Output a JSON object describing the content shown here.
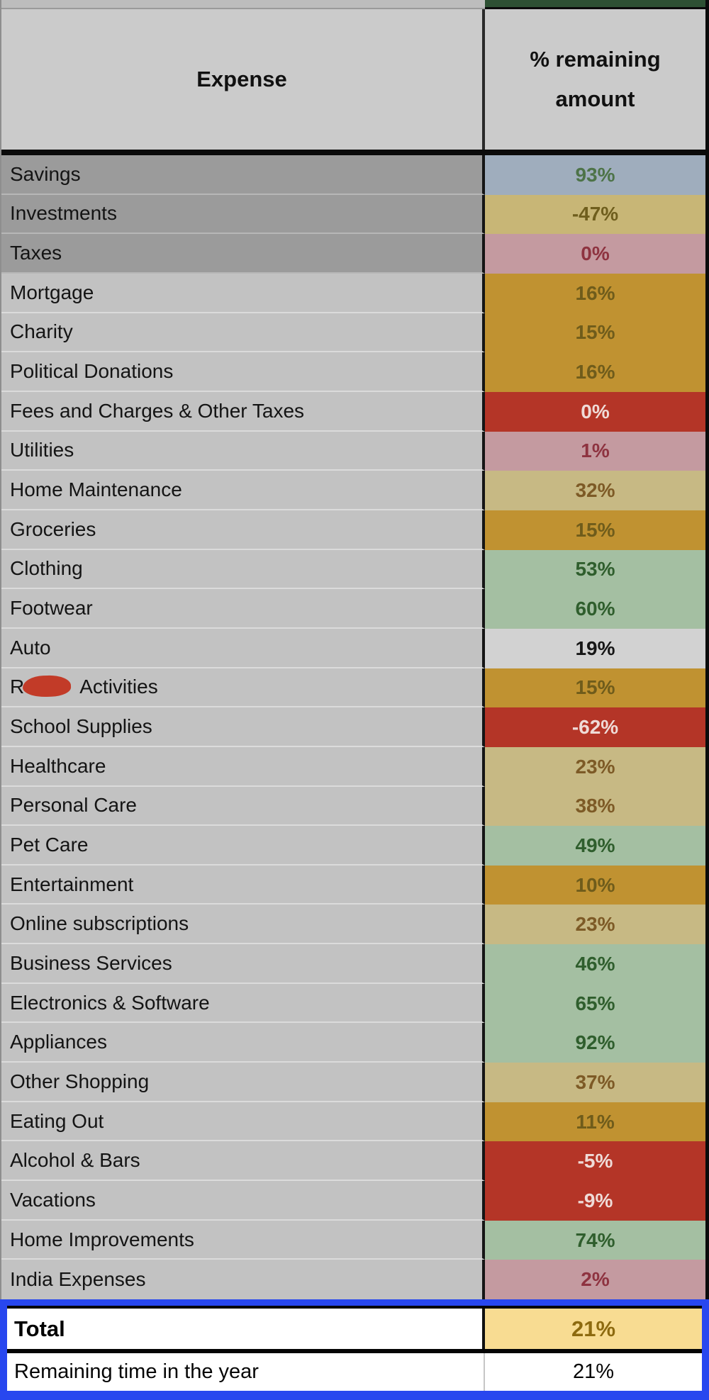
{
  "table": {
    "columns": [
      "Expense",
      "% remaining amount"
    ],
    "rows": [
      {
        "label": "Savings",
        "value": "93%",
        "color": "slate",
        "shade": "dark"
      },
      {
        "label": "Investments",
        "value": "-47%",
        "color": "tan",
        "shade": "dark"
      },
      {
        "label": "Taxes",
        "value": "0%",
        "color": "pink",
        "shade": "dark"
      },
      {
        "label": "Mortgage",
        "value": "16%",
        "color": "gold",
        "shade": "light"
      },
      {
        "label": "Charity",
        "value": "15%",
        "color": "gold",
        "shade": "light"
      },
      {
        "label": "Political Donations",
        "value": "16%",
        "color": "gold",
        "shade": "light"
      },
      {
        "label": "Fees and Charges & Other Taxes",
        "value": "0%",
        "color": "red",
        "shade": "light"
      },
      {
        "label": "Utilities",
        "value": "1%",
        "color": "pink",
        "shade": "light"
      },
      {
        "label": "Home Maintenance",
        "value": "32%",
        "color": "khaki",
        "shade": "light"
      },
      {
        "label": "Groceries",
        "value": "15%",
        "color": "gold",
        "shade": "light"
      },
      {
        "label": "Clothing",
        "value": "53%",
        "color": "green",
        "shade": "light"
      },
      {
        "label": "Footwear",
        "value": "60%",
        "color": "green",
        "shade": "light"
      },
      {
        "label": "Auto",
        "value": "19%",
        "color": "gray",
        "shade": "light"
      },
      {
        "label_prefix": "R",
        "redacted": true,
        "label_suffix": "Activities",
        "value": "15%",
        "color": "gold",
        "shade": "light"
      },
      {
        "label": "School Supplies",
        "value": "-62%",
        "color": "red",
        "shade": "light"
      },
      {
        "label": "Healthcare",
        "value": "23%",
        "color": "khaki",
        "shade": "light"
      },
      {
        "label": "Personal Care",
        "value": "38%",
        "color": "khaki",
        "shade": "light"
      },
      {
        "label": "Pet Care",
        "value": "49%",
        "color": "green",
        "shade": "light"
      },
      {
        "label": "Entertainment",
        "value": "10%",
        "color": "gold",
        "shade": "light"
      },
      {
        "label": "Online subscriptions",
        "value": "23%",
        "color": "khaki",
        "shade": "light"
      },
      {
        "label": "Business Services",
        "value": "46%",
        "color": "green",
        "shade": "light"
      },
      {
        "label": "Electronics & Software",
        "value": "65%",
        "color": "green",
        "shade": "light"
      },
      {
        "label": "Appliances",
        "value": "92%",
        "color": "green",
        "shade": "light"
      },
      {
        "label": "Other Shopping",
        "value": "37%",
        "color": "khaki",
        "shade": "light"
      },
      {
        "label": "Eating Out",
        "value": "11%",
        "color": "gold",
        "shade": "light"
      },
      {
        "label": "Alcohol & Bars",
        "value": "-5%",
        "color": "red",
        "shade": "light"
      },
      {
        "label": "Vacations",
        "value": "-9%",
        "color": "red",
        "shade": "light"
      },
      {
        "label": "Home Improvements",
        "value": "74%",
        "color": "green",
        "shade": "light"
      },
      {
        "label": "India Expenses",
        "value": "2%",
        "color": "pink",
        "shade": "light"
      }
    ],
    "total_row": {
      "label": "Total",
      "value": "21%"
    },
    "remaining_row": {
      "label": "Remaining time in the year",
      "value": "21%"
    }
  },
  "palette": {
    "slate": {
      "bg": "#9fadbd",
      "fg": "#4d7348"
    },
    "tan": {
      "bg": "#c8b676",
      "fg": "#6f5e1d"
    },
    "pink": {
      "bg": "#c49aa0",
      "fg": "#8e3340"
    },
    "gold": {
      "bg": "#c09231",
      "fg": "#6f5c1b"
    },
    "red": {
      "bg": "#b43527",
      "fg": "#efdbd7"
    },
    "khaki": {
      "bg": "#c7b984",
      "fg": "#7d5a26"
    },
    "green": {
      "bg": "#a4bfa2",
      "fg": "#2f5e2d"
    },
    "gray": {
      "bg": "#d2d2d2",
      "fg": "#161616"
    },
    "total": {
      "bg": "#f8dc92",
      "fg": "#8d6a0f"
    }
  },
  "accents": {
    "selection_blue": "#2847ef",
    "top_strip_green": "#2d5033",
    "redaction_red": "#c23b28"
  }
}
